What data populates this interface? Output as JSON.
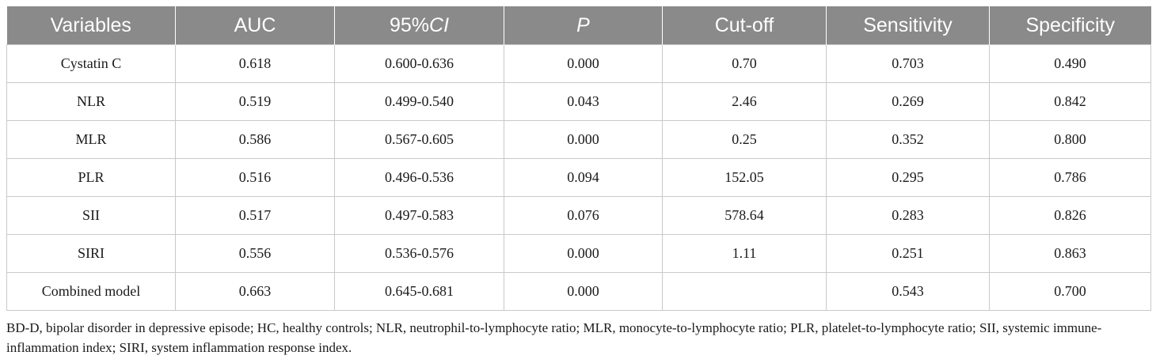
{
  "table": {
    "headers": [
      {
        "text": "Variables"
      },
      {
        "text": "AUC"
      },
      {
        "pre": "95%",
        "italic": "CI"
      },
      {
        "pre": "",
        "italic": "P"
      },
      {
        "text": "Cut-off"
      },
      {
        "text": "Sensitivity"
      },
      {
        "text": "Specificity"
      }
    ],
    "rows": [
      [
        "Cystatin C",
        "0.618",
        "0.600-0.636",
        "0.000",
        "0.70",
        "0.703",
        "0.490"
      ],
      [
        "NLR",
        "0.519",
        "0.499-0.540",
        "0.043",
        "2.46",
        "0.269",
        "0.842"
      ],
      [
        "MLR",
        "0.586",
        "0.567-0.605",
        "0.000",
        "0.25",
        "0.352",
        "0.800"
      ],
      [
        "PLR",
        "0.516",
        "0.496-0.536",
        "0.094",
        "152.05",
        "0.295",
        "0.786"
      ],
      [
        "SII",
        "0.517",
        "0.497-0.583",
        "0.076",
        "578.64",
        "0.283",
        "0.826"
      ],
      [
        "SIRI",
        "0.556",
        "0.536-0.576",
        "0.000",
        "1.11",
        "0.251",
        "0.863"
      ],
      [
        "Combined model",
        "0.663",
        "0.645-0.681",
        "0.000",
        "",
        "0.543",
        "0.700"
      ]
    ]
  },
  "footnote": "BD-D, bipolar disorder in depressive episode; HC, healthy controls; NLR, neutrophil-to-lymphocyte ratio; MLR, monocyte-to-lymphocyte ratio; PLR, platelet-to-lymphocyte ratio; SII, systemic immune-inflammation index; SIRI, system inflammation response index.",
  "colors": {
    "header_bg": "#8a8a8a",
    "header_text": "#ffffff",
    "grid": "#c9c9c9"
  }
}
